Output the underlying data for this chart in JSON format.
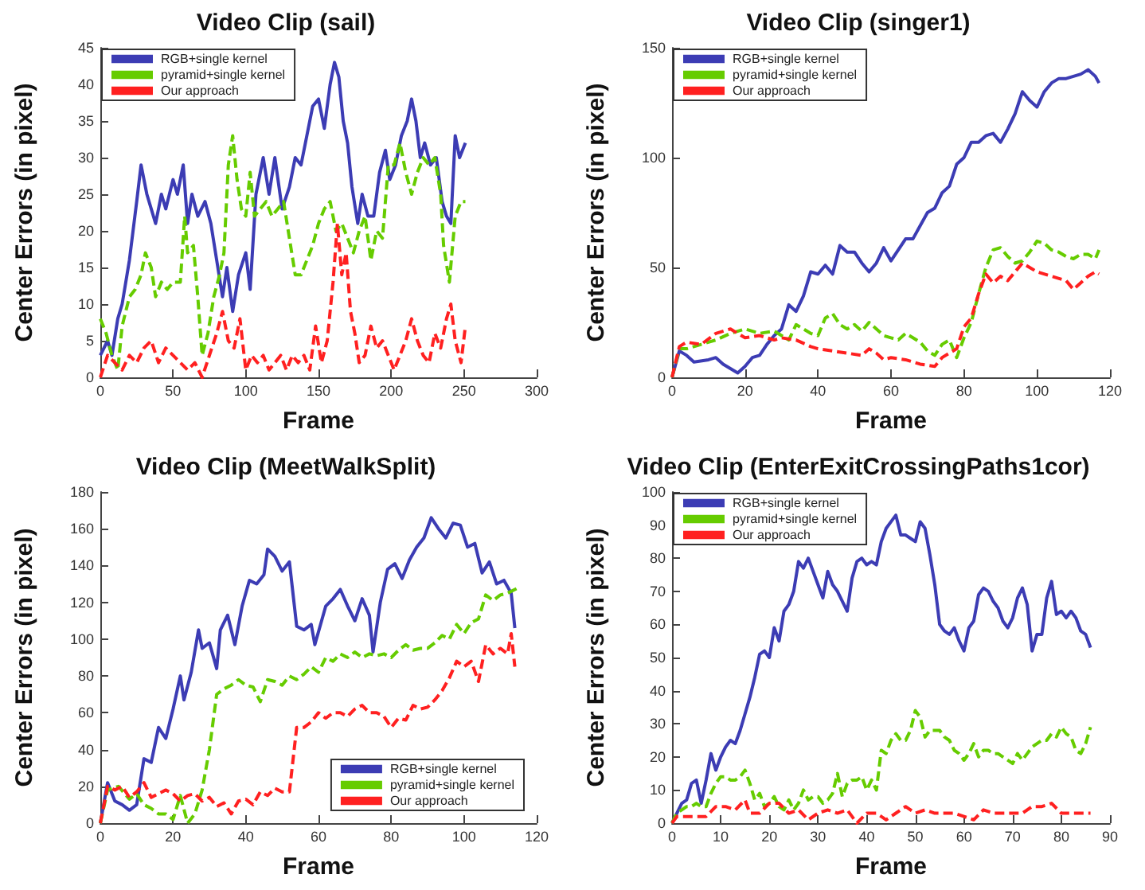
{
  "chart_data": [
    {
      "type": "line",
      "title": "Video Clip (sail)",
      "xlabel": "Frame",
      "ylabel": "Center Errors (in pixel)",
      "xlim": [
        0,
        300
      ],
      "xticks": [
        0,
        50,
        100,
        150,
        200,
        250,
        300
      ],
      "ylim": [
        0,
        45
      ],
      "yticks": [
        0,
        5,
        10,
        15,
        20,
        25,
        30,
        35,
        40,
        45
      ],
      "grid": false,
      "legend": "top left",
      "marker": "none",
      "series": [
        {
          "name": "RGB+single kernel",
          "color": "#3c3cb4",
          "line_style": "solid",
          "x": [
            0,
            5,
            8,
            12,
            15,
            20,
            25,
            28,
            32,
            35,
            38,
            42,
            45,
            50,
            53,
            57,
            60,
            63,
            67,
            72,
            76,
            80,
            84,
            87,
            91,
            95,
            100,
            103,
            107,
            112,
            116,
            120,
            125,
            130,
            134,
            138,
            142,
            146,
            150,
            154,
            158,
            161,
            164,
            167,
            170,
            173,
            177,
            180,
            184,
            188,
            192,
            196,
            199,
            203,
            207,
            211,
            214,
            217,
            220,
            223,
            227,
            231,
            235,
            238,
            241,
            244,
            247,
            251
          ],
          "values": [
            3,
            5,
            3,
            8,
            10,
            16,
            24,
            29,
            25,
            23,
            21,
            25,
            23,
            27,
            25,
            29,
            21,
            25,
            22,
            24,
            21,
            16,
            11,
            15,
            9,
            14,
            17,
            12,
            25,
            30,
            25,
            30,
            23,
            26,
            30,
            29,
            33,
            37,
            38,
            34,
            40,
            43,
            41,
            35,
            32,
            26,
            21,
            25,
            22,
            22,
            28,
            31,
            27,
            29,
            33,
            35,
            38,
            35,
            30,
            32,
            29,
            30,
            24,
            22,
            21,
            33,
            30,
            32
          ]
        },
        {
          "name": "pyramid+single kernel",
          "color": "#66cc00",
          "line_style": "dashed",
          "x": [
            0,
            4,
            8,
            12,
            15,
            20,
            24,
            28,
            31,
            35,
            38,
            42,
            46,
            50,
            55,
            58,
            60,
            64,
            67,
            70,
            74,
            78,
            82,
            85,
            88,
            91,
            94,
            97,
            100,
            103,
            106,
            110,
            114,
            118,
            122,
            126,
            130,
            134,
            138,
            142,
            146,
            150,
            154,
            158,
            162,
            166,
            170,
            174,
            178,
            182,
            186,
            190,
            194,
            198,
            202,
            206,
            210,
            214,
            218,
            222,
            226,
            230,
            234,
            236,
            240,
            244,
            248,
            251
          ],
          "values": [
            8,
            6,
            3,
            1,
            7,
            11,
            12,
            14,
            17,
            15,
            11,
            13,
            12,
            13,
            13,
            22,
            17,
            18,
            11,
            3,
            6,
            11,
            14,
            17,
            29,
            33,
            27,
            23,
            22,
            28,
            22,
            23,
            24,
            22,
            23,
            24,
            19,
            14,
            14,
            16,
            18,
            21,
            23,
            24,
            20,
            21,
            19,
            17,
            20,
            22,
            16,
            20,
            19,
            29,
            29,
            32,
            28,
            25,
            28,
            30,
            29,
            30,
            25,
            18,
            13,
            22,
            24,
            24
          ]
        },
        {
          "name": "Our approach",
          "color": "#ff2020",
          "line_style": "dashed",
          "x": [
            0,
            5,
            10,
            15,
            20,
            25,
            30,
            35,
            40,
            45,
            50,
            55,
            60,
            65,
            70,
            75,
            80,
            84,
            88,
            92,
            96,
            100,
            104,
            108,
            112,
            116,
            120,
            124,
            128,
            132,
            136,
            140,
            144,
            148,
            152,
            156,
            160,
            163,
            166,
            169,
            172,
            175,
            178,
            182,
            186,
            190,
            194,
            198,
            202,
            206,
            210,
            214,
            218,
            222,
            226,
            230,
            234,
            238,
            241,
            244,
            248,
            251
          ],
          "values": [
            0,
            3,
            2,
            1,
            3,
            2,
            4,
            5,
            2,
            4,
            3,
            2,
            1,
            2,
            0,
            3,
            6,
            9,
            5,
            4,
            8,
            1,
            3,
            2,
            3,
            1,
            2,
            3,
            1,
            3,
            2,
            3,
            1,
            7,
            2,
            5,
            13,
            21,
            14,
            17,
            9,
            6,
            2,
            3,
            7,
            4,
            5,
            3,
            1,
            3,
            5,
            8,
            5,
            3,
            2,
            6,
            4,
            8,
            10,
            5,
            2,
            7
          ]
        }
      ]
    },
    {
      "type": "line",
      "title": "Video Clip (singer1)",
      "xlabel": "Frame",
      "ylabel": "Center Errors (in pixel)",
      "xlim": [
        0,
        120
      ],
      "xticks": [
        0,
        20,
        40,
        60,
        80,
        100,
        120
      ],
      "ylim": [
        0,
        150
      ],
      "yticks": [
        0,
        50,
        100,
        150
      ],
      "grid": false,
      "legend": "top left",
      "marker": "none",
      "series": [
        {
          "name": "RGB+single kernel",
          "color": "#3c3cb4",
          "line_style": "solid",
          "x": [
            0,
            2,
            4,
            6,
            10,
            12,
            14,
            16,
            18,
            20,
            22,
            24,
            26,
            28,
            30,
            32,
            34,
            36,
            38,
            40,
            42,
            44,
            46,
            48,
            50,
            52,
            54,
            56,
            58,
            60,
            62,
            64,
            66,
            68,
            70,
            72,
            74,
            76,
            78,
            80,
            82,
            84,
            86,
            88,
            90,
            92,
            94,
            96,
            98,
            100,
            102,
            104,
            106,
            108,
            110,
            112,
            114,
            116,
            117
          ],
          "values": [
            0,
            12,
            10,
            7,
            8,
            9,
            6,
            4,
            2,
            5,
            9,
            10,
            15,
            19,
            22,
            33,
            30,
            37,
            48,
            47,
            51,
            47,
            60,
            57,
            57,
            52,
            48,
            52,
            59,
            53,
            58,
            63,
            63,
            69,
            75,
            77,
            84,
            87,
            97,
            100,
            107,
            107,
            110,
            111,
            107,
            113,
            120,
            130,
            126,
            123,
            130,
            134,
            136,
            136,
            137,
            138,
            140,
            137,
            134
          ]
        },
        {
          "name": "pyramid+single kernel",
          "color": "#66cc00",
          "line_style": "dashed",
          "x": [
            0,
            2,
            4,
            8,
            12,
            16,
            20,
            24,
            28,
            30,
            32,
            34,
            36,
            38,
            40,
            42,
            44,
            46,
            48,
            50,
            52,
            54,
            56,
            58,
            60,
            62,
            64,
            66,
            68,
            70,
            72,
            74,
            76,
            78,
            80,
            82,
            84,
            86,
            88,
            90,
            92,
            94,
            96,
            98,
            100,
            102,
            104,
            106,
            108,
            110,
            112,
            114,
            116,
            117
          ],
          "values": [
            0,
            13,
            13,
            15,
            17,
            20,
            22,
            20,
            21,
            19,
            17,
            24,
            22,
            20,
            19,
            27,
            29,
            24,
            22,
            24,
            21,
            25,
            22,
            19,
            18,
            17,
            20,
            18,
            16,
            12,
            10,
            15,
            17,
            9,
            18,
            25,
            38,
            50,
            58,
            59,
            55,
            52,
            53,
            57,
            62,
            61,
            58,
            57,
            55,
            54,
            56,
            56,
            54,
            58
          ]
        },
        {
          "name": "Our approach",
          "color": "#ff2020",
          "line_style": "dashed",
          "x": [
            0,
            2,
            4,
            8,
            12,
            16,
            20,
            24,
            28,
            30,
            34,
            38,
            40,
            44,
            48,
            52,
            54,
            56,
            58,
            60,
            64,
            68,
            72,
            74,
            76,
            78,
            80,
            82,
            84,
            86,
            88,
            90,
            92,
            94,
            96,
            98,
            100,
            104,
            108,
            110,
            112,
            114,
            116,
            117
          ],
          "values": [
            0,
            14,
            16,
            15,
            20,
            22,
            18,
            19,
            17,
            18,
            17,
            14,
            13,
            12,
            11,
            10,
            13,
            11,
            8,
            9,
            8,
            6,
            5,
            9,
            11,
            13,
            23,
            27,
            38,
            47,
            43,
            46,
            44,
            48,
            52,
            50,
            48,
            46,
            44,
            40,
            43,
            46,
            48,
            47
          ]
        }
      ]
    },
    {
      "type": "line",
      "title": "Video Clip (MeetWalkSplit)",
      "xlabel": "Frame",
      "ylabel": "Center Errors (in pixel)",
      "xlim": [
        0,
        120
      ],
      "xticks": [
        0,
        20,
        40,
        60,
        80,
        100,
        120
      ],
      "ylim": [
        0,
        180
      ],
      "yticks": [
        0,
        20,
        40,
        60,
        80,
        100,
        120,
        140,
        160,
        180
      ],
      "grid": false,
      "legend": "bottom right",
      "marker": "none",
      "series": [
        {
          "name": "RGB+single kernel",
          "color": "#3c3cb4",
          "line_style": "solid",
          "x": [
            0,
            2,
            4,
            6,
            8,
            10,
            12,
            14,
            16,
            18,
            20,
            22,
            23,
            25,
            27,
            28,
            30,
            32,
            33,
            35,
            37,
            39,
            41,
            43,
            45,
            46,
            48,
            50,
            52,
            54,
            56,
            58,
            59,
            62,
            64,
            66,
            68,
            70,
            72,
            74,
            75,
            77,
            79,
            81,
            83,
            85,
            87,
            89,
            91,
            93,
            95,
            97,
            99,
            101,
            103,
            105,
            107,
            109,
            111,
            113,
            114
          ],
          "values": [
            0,
            22,
            12,
            10,
            7,
            10,
            35,
            33,
            52,
            46,
            62,
            80,
            67,
            82,
            105,
            95,
            98,
            84,
            105,
            113,
            97,
            118,
            132,
            130,
            135,
            149,
            145,
            137,
            142,
            107,
            105,
            108,
            97,
            118,
            122,
            127,
            118,
            110,
            122,
            113,
            93,
            120,
            138,
            141,
            133,
            143,
            150,
            155,
            166,
            160,
            155,
            163,
            162,
            150,
            152,
            136,
            142,
            130,
            132,
            125,
            106
          ]
        },
        {
          "name": "pyramid+single kernel",
          "color": "#66cc00",
          "line_style": "dashed",
          "x": [
            0,
            2,
            5,
            8,
            10,
            12,
            14,
            16,
            18,
            20,
            22,
            24,
            26,
            28,
            30,
            32,
            34,
            36,
            38,
            40,
            42,
            44,
            46,
            48,
            50,
            52,
            54,
            56,
            58,
            60,
            62,
            64,
            66,
            68,
            70,
            72,
            74,
            76,
            78,
            80,
            82,
            84,
            86,
            88,
            90,
            92,
            94,
            96,
            98,
            100,
            102,
            104,
            106,
            108,
            110,
            112,
            115
          ],
          "values": [
            0,
            18,
            20,
            13,
            16,
            10,
            8,
            5,
            5,
            2,
            15,
            0,
            5,
            18,
            40,
            70,
            73,
            75,
            78,
            75,
            74,
            66,
            78,
            77,
            75,
            80,
            78,
            81,
            85,
            82,
            90,
            88,
            92,
            90,
            93,
            90,
            92,
            91,
            92,
            90,
            94,
            97,
            94,
            95,
            95,
            98,
            102,
            100,
            108,
            103,
            109,
            111,
            124,
            121,
            124,
            125,
            128
          ]
        },
        {
          "name": "Our approach",
          "color": "#ff2020",
          "line_style": "dashed",
          "x": [
            0,
            2,
            4,
            6,
            8,
            10,
            12,
            14,
            16,
            18,
            20,
            22,
            24,
            26,
            28,
            30,
            32,
            34,
            36,
            38,
            40,
            42,
            44,
            46,
            48,
            50,
            52,
            54,
            56,
            58,
            60,
            62,
            64,
            66,
            68,
            70,
            72,
            74,
            76,
            78,
            80,
            82,
            84,
            86,
            88,
            90,
            92,
            94,
            96,
            98,
            100,
            102,
            104,
            106,
            108,
            110,
            112,
            113,
            114
          ],
          "values": [
            0,
            20,
            18,
            20,
            14,
            17,
            22,
            14,
            16,
            18,
            16,
            12,
            15,
            16,
            12,
            14,
            9,
            11,
            5,
            12,
            13,
            10,
            17,
            15,
            19,
            17,
            17,
            52,
            52,
            55,
            60,
            57,
            60,
            60,
            58,
            62,
            64,
            60,
            60,
            58,
            52,
            57,
            56,
            64,
            62,
            63,
            67,
            72,
            79,
            88,
            85,
            88,
            77,
            97,
            92,
            95,
            92,
            103,
            85
          ]
        }
      ]
    },
    {
      "type": "line",
      "title": "Video Clip (EnterExitCrossingPaths1cor)",
      "xlabel": "Frame",
      "ylabel": "Center Errors (in pixel)",
      "xlim": [
        0,
        90
      ],
      "xticks": [
        0,
        10,
        20,
        30,
        40,
        50,
        60,
        70,
        80,
        90
      ],
      "ylim": [
        0,
        100
      ],
      "yticks": [
        0,
        10,
        20,
        30,
        40,
        50,
        60,
        70,
        80,
        90,
        100
      ],
      "grid": false,
      "legend": "top left",
      "marker": "none",
      "series": [
        {
          "name": "RGB+single kernel",
          "color": "#3c3cb4",
          "line_style": "solid",
          "x": [
            0,
            2,
            3,
            4,
            5,
            6,
            7,
            8,
            9,
            10,
            11,
            12,
            13,
            14,
            15,
            16,
            17,
            18,
            19,
            20,
            21,
            22,
            23,
            24,
            25,
            26,
            27,
            28,
            29,
            30,
            31,
            32,
            33,
            34,
            35,
            36,
            37,
            38,
            39,
            40,
            41,
            42,
            43,
            44,
            45,
            46,
            47,
            48,
            49,
            50,
            51,
            52,
            53,
            54,
            55,
            56,
            57,
            58,
            59,
            60,
            61,
            62,
            63,
            64,
            65,
            66,
            67,
            68,
            69,
            70,
            71,
            72,
            73,
            74,
            75,
            76,
            77,
            78,
            79,
            80,
            81,
            82,
            83,
            84,
            85,
            86
          ],
          "values": [
            0,
            6,
            7,
            12,
            13,
            6,
            13,
            21,
            16,
            20,
            23,
            25,
            24,
            28,
            33,
            38,
            44,
            51,
            52,
            50,
            59,
            55,
            64,
            66,
            70,
            79,
            77,
            80,
            76,
            72,
            68,
            76,
            72,
            70,
            67,
            64,
            74,
            79,
            80,
            78,
            79,
            78,
            85,
            89,
            91,
            93,
            87,
            87,
            86,
            85,
            91,
            89,
            81,
            72,
            60,
            58,
            57,
            59,
            55,
            52,
            59,
            61,
            69,
            71,
            70,
            67,
            65,
            61,
            59,
            62,
            68,
            71,
            66,
            52,
            57,
            57,
            68,
            73,
            63,
            64,
            62,
            64,
            62,
            58,
            57,
            53
          ]
        },
        {
          "name": "pyramid+single kernel",
          "color": "#66cc00",
          "line_style": "dashed",
          "x": [
            0,
            1,
            2,
            3,
            4,
            5,
            6,
            7,
            8,
            9,
            10,
            11,
            12,
            13,
            14,
            15,
            16,
            17,
            18,
            19,
            20,
            21,
            22,
            23,
            24,
            25,
            26,
            27,
            28,
            29,
            30,
            31,
            32,
            33,
            34,
            35,
            36,
            37,
            38,
            39,
            40,
            41,
            42,
            43,
            44,
            45,
            46,
            47,
            48,
            49,
            50,
            51,
            52,
            53,
            54,
            55,
            56,
            57,
            58,
            59,
            60,
            61,
            62,
            63,
            64,
            65,
            66,
            67,
            68,
            69,
            70,
            71,
            72,
            73,
            74,
            75,
            76,
            77,
            78,
            79,
            80,
            81,
            82,
            83,
            84,
            85,
            86
          ],
          "values": [
            0,
            3,
            4,
            5,
            5,
            6,
            5,
            5,
            9,
            12,
            14,
            14,
            13,
            13,
            14,
            16,
            12,
            7,
            9,
            5,
            6,
            8,
            5,
            4,
            7,
            4,
            6,
            10,
            7,
            8,
            8,
            6,
            7,
            9,
            15,
            8,
            12,
            13,
            13,
            14,
            10,
            13,
            10,
            22,
            21,
            25,
            27,
            25,
            25,
            28,
            34,
            32,
            26,
            28,
            28,
            28,
            26,
            25,
            22,
            21,
            19,
            21,
            24,
            20,
            22,
            22,
            21,
            21,
            20,
            19,
            18,
            21,
            19,
            21,
            23,
            24,
            25,
            25,
            27,
            26,
            29,
            27,
            26,
            22,
            21,
            24,
            29
          ]
        },
        {
          "name": "Our approach",
          "color": "#ff2020",
          "line_style": "dashed",
          "x": [
            0,
            1,
            3,
            5,
            7,
            9,
            11,
            13,
            15,
            16,
            18,
            20,
            22,
            24,
            26,
            28,
            30,
            32,
            34,
            36,
            38,
            40,
            42,
            44,
            46,
            48,
            50,
            52,
            54,
            56,
            58,
            60,
            62,
            64,
            66,
            68,
            70,
            72,
            74,
            76,
            78,
            80,
            82,
            84,
            86
          ],
          "values": [
            0,
            2,
            2,
            2,
            2,
            5,
            5,
            4,
            7,
            3,
            3,
            6,
            6,
            3,
            4,
            1,
            3,
            4,
            3,
            4,
            0,
            3,
            3,
            1,
            3,
            5,
            3,
            4,
            3,
            3,
            3,
            2,
            1,
            4,
            3,
            3,
            3,
            3,
            5,
            5,
            6,
            3,
            3,
            3,
            3
          ]
        }
      ]
    }
  ]
}
